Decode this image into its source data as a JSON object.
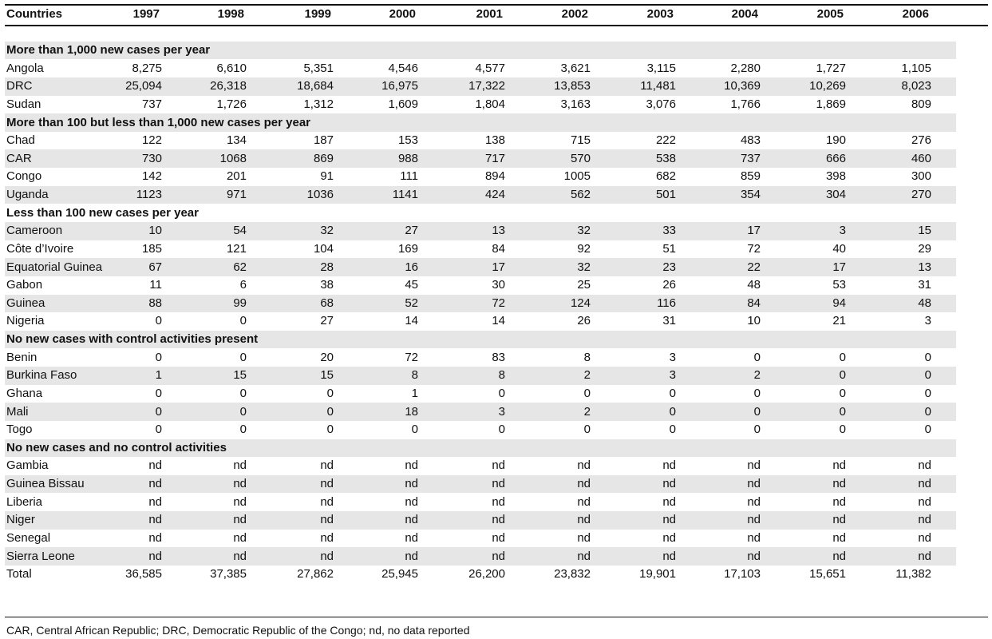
{
  "header": {
    "label": "Countries",
    "years": [
      "1997",
      "1998",
      "1999",
      "2000",
      "2001",
      "2002",
      "2003",
      "2004",
      "2005",
      "2006"
    ]
  },
  "groups": [
    {
      "title": "More than 1,000 new cases per year",
      "rows": [
        {
          "country": "Angola",
          "values": [
            "8,275",
            "6,610",
            "5,351",
            "4,546",
            "4,577",
            "3,621",
            "3,115",
            "2,280",
            "1,727",
            "1,105"
          ]
        },
        {
          "country": "DRC",
          "values": [
            "25,094",
            "26,318",
            "18,684",
            "16,975",
            "17,322",
            "13,853",
            "11,481",
            "10,369",
            "10,269",
            "8,023"
          ]
        },
        {
          "country": "Sudan",
          "values": [
            "737",
            "1,726",
            "1,312",
            "1,609",
            "1,804",
            "3,163",
            "3,076",
            "1,766",
            "1,869",
            "809"
          ]
        }
      ]
    },
    {
      "title": "More than 100 but less than 1,000 new cases per year",
      "rows": [
        {
          "country": "Chad",
          "values": [
            "122",
            "134",
            "187",
            "153",
            "138",
            "715",
            "222",
            "483",
            "190",
            "276"
          ]
        },
        {
          "country": "CAR",
          "values": [
            "730",
            "1068",
            "869",
            "988",
            "717",
            "570",
            "538",
            "737",
            "666",
            "460"
          ]
        },
        {
          "country": "Congo",
          "values": [
            "142",
            "201",
            "91",
            "111",
            "894",
            "1005",
            "682",
            "859",
            "398",
            "300"
          ]
        },
        {
          "country": "Uganda",
          "values": [
            "1123",
            "971",
            "1036",
            "1141",
            "424",
            "562",
            "501",
            "354",
            "304",
            "270"
          ]
        }
      ]
    },
    {
      "title": "Less than 100 new cases per year",
      "rows": [
        {
          "country": "Cameroon",
          "values": [
            "10",
            "54",
            "32",
            "27",
            "13",
            "32",
            "33",
            "17",
            "3",
            "15"
          ]
        },
        {
          "country": "Côte d’Ivoire",
          "values": [
            "185",
            "121",
            "104",
            "169",
            "84",
            "92",
            "51",
            "72",
            "40",
            "29"
          ]
        },
        {
          "country": "Equatorial Guinea",
          "values": [
            "67",
            "62",
            "28",
            "16",
            "17",
            "32",
            "23",
            "22",
            "17",
            "13"
          ]
        },
        {
          "country": "Gabon",
          "values": [
            "11",
            "6",
            "38",
            "45",
            "30",
            "25",
            "26",
            "48",
            "53",
            "31"
          ]
        },
        {
          "country": "Guinea",
          "values": [
            "88",
            "99",
            "68",
            "52",
            "72",
            "124",
            "116",
            "84",
            "94",
            "48"
          ]
        },
        {
          "country": "Nigeria",
          "values": [
            "0",
            "0",
            "27",
            "14",
            "14",
            "26",
            "31",
            "10",
            "21",
            "3"
          ]
        }
      ]
    },
    {
      "title": "No new cases with control activities present",
      "rows": [
        {
          "country": "Benin",
          "values": [
            "0",
            "0",
            "20",
            "72",
            "83",
            "8",
            "3",
            "0",
            "0",
            "0"
          ]
        },
        {
          "country": "Burkina Faso",
          "values": [
            "1",
            "15",
            "15",
            "8",
            "8",
            "2",
            "3",
            "2",
            "0",
            "0"
          ]
        },
        {
          "country": "Ghana",
          "values": [
            "0",
            "0",
            "0",
            "1",
            "0",
            "0",
            "0",
            "0",
            "0",
            "0"
          ]
        },
        {
          "country": "Mali",
          "values": [
            "0",
            "0",
            "0",
            "18",
            "3",
            "2",
            "0",
            "0",
            "0",
            "0"
          ]
        },
        {
          "country": "Togo",
          "values": [
            "0",
            "0",
            "0",
            "0",
            "0",
            "0",
            "0",
            "0",
            "0",
            "0"
          ]
        }
      ]
    },
    {
      "title": "No new cases and no control activities",
      "rows": [
        {
          "country": "Gambia",
          "values": [
            "nd",
            "nd",
            "nd",
            "nd",
            "nd",
            "nd",
            "nd",
            "nd",
            "nd",
            "nd"
          ]
        },
        {
          "country": "Guinea Bissau",
          "values": [
            "nd",
            "nd",
            "nd",
            "nd",
            "nd",
            "nd",
            "nd",
            "nd",
            "nd",
            "nd"
          ]
        },
        {
          "country": "Liberia",
          "values": [
            "nd",
            "nd",
            "nd",
            "nd",
            "nd",
            "nd",
            "nd",
            "nd",
            "nd",
            "nd"
          ]
        },
        {
          "country": "Niger",
          "values": [
            "nd",
            "nd",
            "nd",
            "nd",
            "nd",
            "nd",
            "nd",
            "nd",
            "nd",
            "nd"
          ]
        },
        {
          "country": "Senegal",
          "values": [
            "nd",
            "nd",
            "nd",
            "nd",
            "nd",
            "nd",
            "nd",
            "nd",
            "nd",
            "nd"
          ]
        },
        {
          "country": "Sierra Leone",
          "values": [
            "nd",
            "nd",
            "nd",
            "nd",
            "nd",
            "nd",
            "nd",
            "nd",
            "nd",
            "nd"
          ]
        }
      ]
    }
  ],
  "total": {
    "label": "Total",
    "values": [
      "36,585",
      "37,385",
      "27,862",
      "25,945",
      "26,200",
      "23,832",
      "19,901",
      "17,103",
      "15,651",
      "11,382"
    ]
  },
  "footnote": "CAR, Central African Republic; DRC, Democratic Republic of the Congo; nd, no data reported"
}
